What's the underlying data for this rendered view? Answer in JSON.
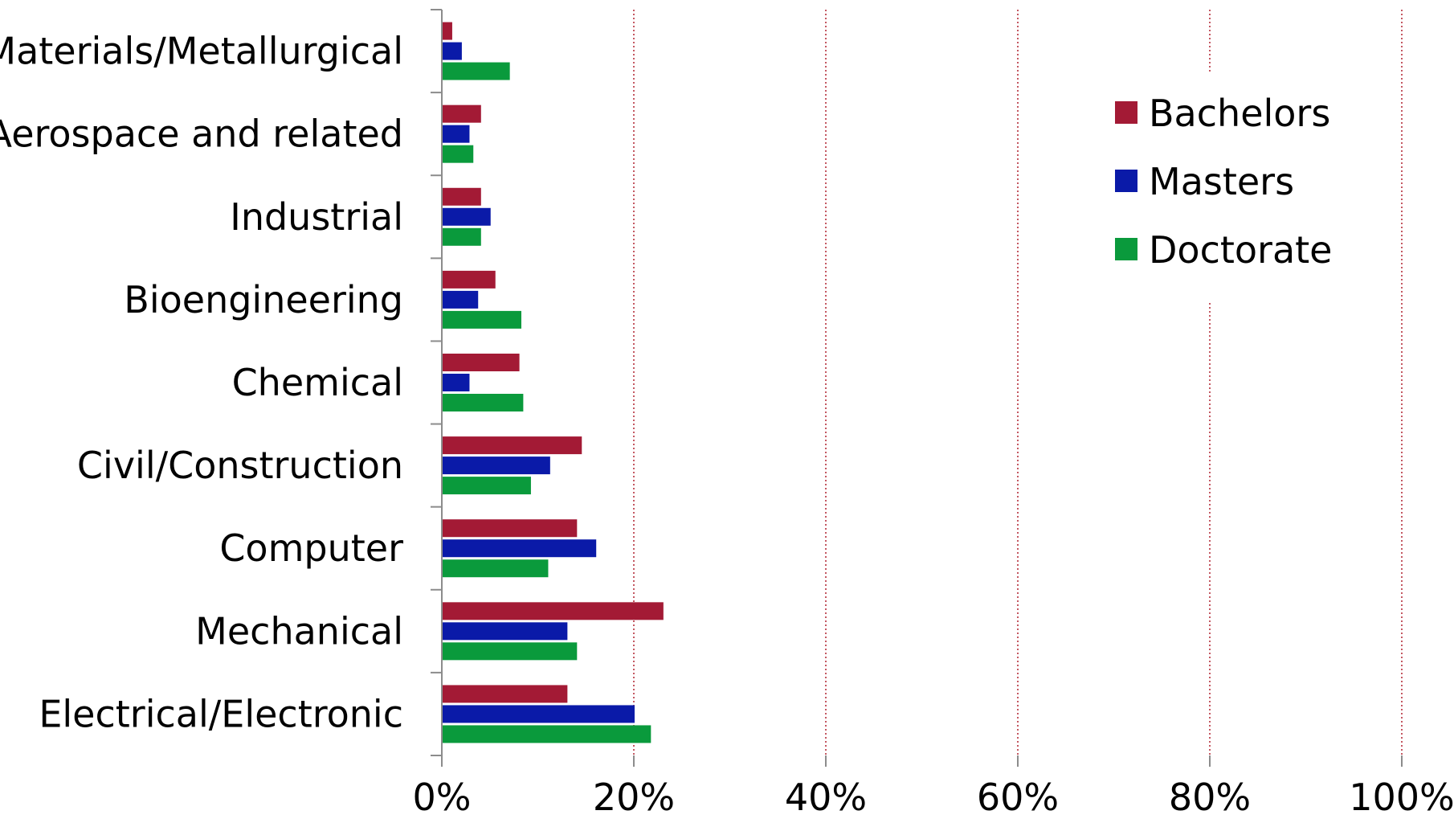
{
  "chart_data": {
    "type": "bar",
    "orientation": "horizontal",
    "categories": [
      "Materials/Metallurgical",
      "Aerospace and related",
      "Industrial",
      "Bioengineering",
      "Chemical",
      "Civil/Construction",
      "Computer",
      "Mechanical",
      "Electrical/Electronic"
    ],
    "series": [
      {
        "name": "Bachelors",
        "color": "#a31a35",
        "values": [
          1,
          4,
          4,
          5.5,
          8,
          14.5,
          14,
          23,
          13
        ]
      },
      {
        "name": "Masters",
        "color": "#0a1aa8",
        "values": [
          2,
          2.8,
          5,
          3.7,
          2.8,
          11.2,
          16,
          13,
          20
        ]
      },
      {
        "name": "Doctorate",
        "color": "#0a9a3c",
        "values": [
          7,
          3.2,
          4,
          8.2,
          8.4,
          9.2,
          11,
          14,
          21.7
        ]
      }
    ],
    "x_ticks": [
      "0%",
      "20%",
      "40%",
      "60%",
      "80%",
      "100%"
    ],
    "xlim": [
      0,
      100
    ],
    "grid": "vertical dotted red",
    "legend_position": "top-right",
    "title": "",
    "xlabel": "",
    "ylabel": ""
  }
}
